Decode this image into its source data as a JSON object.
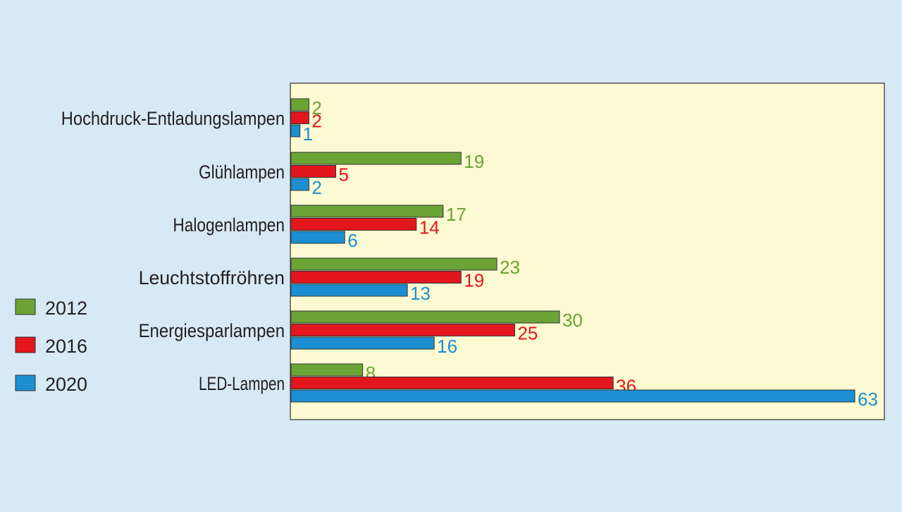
{
  "chart_data": {
    "type": "bar",
    "orientation": "horizontal",
    "categories": [
      "Hochdruck-Entladungslampen",
      "Glühlampen",
      "Halogenlampen",
      "Leuchtstoffröhren",
      "Energiesparlampen",
      "LED-Lampen"
    ],
    "series": [
      {
        "name": "2012",
        "color": "#6ba334",
        "values": [
          2,
          19,
          17,
          23,
          30,
          8
        ]
      },
      {
        "name": "2016",
        "color": "#e3161e",
        "values": [
          2,
          5,
          14,
          19,
          25,
          36
        ]
      },
      {
        "name": "2020",
        "color": "#1b8fd2",
        "values": [
          1,
          2,
          6,
          13,
          16,
          63
        ]
      }
    ],
    "xlim": [
      0,
      66
    ],
    "grid": false,
    "legend_position": "left",
    "plot_background": "#fdf9d2",
    "page_background": "#d7e9f5"
  }
}
